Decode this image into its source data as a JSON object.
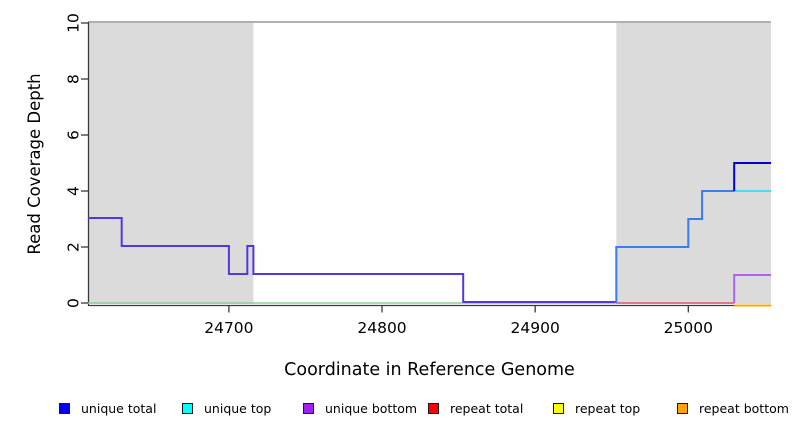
{
  "chart_data": {
    "type": "line",
    "subtype": "step",
    "title": "",
    "xlabel": "Coordinate in Reference Genome",
    "ylabel": "Read Coverage Depth",
    "xlim": [
      24608,
      25054
    ],
    "ylim": [
      0,
      10
    ],
    "x_ticks": [
      24700,
      24800,
      24900,
      25000
    ],
    "y_ticks": [
      0,
      2,
      4,
      6,
      8,
      10
    ],
    "grid": false,
    "legend_position": "bottom",
    "shaded_regions": [
      {
        "x0": 24608,
        "x1": 24716,
        "color": "#dbdbdb"
      },
      {
        "x0": 24953,
        "x1": 25054,
        "color": "#dbdbdb"
      }
    ],
    "series": [
      {
        "name": "unique total",
        "color": "#0000EE",
        "steps": [
          [
            24608,
            3
          ],
          [
            24630,
            2
          ],
          [
            24700,
            1
          ],
          [
            24712,
            2
          ],
          [
            24716,
            1
          ],
          [
            24853,
            0
          ],
          [
            24953,
            2
          ],
          [
            25000,
            3
          ],
          [
            25009,
            4
          ],
          [
            25030,
            5
          ]
        ],
        "end_x": 25054
      },
      {
        "name": "unique top",
        "color": "#00FFFF",
        "steps": [
          [
            24608,
            0
          ],
          [
            24953,
            2
          ],
          [
            25000,
            3
          ],
          [
            25009,
            4
          ]
        ],
        "end_x": 25054
      },
      {
        "name": "unique bottom",
        "color": "#A020F0",
        "steps": [
          [
            24608,
            3
          ],
          [
            24630,
            2
          ],
          [
            24700,
            1
          ],
          [
            24712,
            2
          ],
          [
            24716,
            1
          ],
          [
            24853,
            0
          ],
          [
            25030,
            1
          ]
        ],
        "end_x": 25054
      },
      {
        "name": "repeat total",
        "color": "#FF0000",
        "steps": [
          [
            24608,
            0
          ]
        ],
        "end_x": 25054
      },
      {
        "name": "repeat top",
        "color": "#FFFF00",
        "steps": [
          [
            24608,
            0
          ]
        ],
        "end_x": 25054
      },
      {
        "name": "repeat bottom",
        "color": "#FFA500",
        "steps": [
          [
            24608,
            0
          ]
        ],
        "end_x": 25054
      }
    ],
    "render_segments": [
      {
        "id": "baseline-green",
        "color": "#8fce8f",
        "width": 1.6,
        "dy": 0,
        "points": [
          [
            24608,
            0
          ],
          [
            24953,
            0
          ]
        ]
      },
      {
        "id": "baseline-crimson",
        "color": "#e25573",
        "width": 1.6,
        "dy": 0,
        "points": [
          [
            24953,
            0
          ],
          [
            25030,
            0
          ]
        ]
      },
      {
        "id": "repeat-bottom-orange",
        "color": "#ffa500",
        "width": 2,
        "dy": 2.5,
        "points": [
          [
            25030,
            0
          ],
          [
            25054,
            0
          ]
        ]
      },
      {
        "id": "unique-top-cyan",
        "color": "#45e0e8",
        "width": 2,
        "dy": 0,
        "points": [
          [
            25030,
            4
          ],
          [
            25054,
            4
          ]
        ]
      },
      {
        "id": "unique-bottom-purple",
        "color": "#ae63ed",
        "width": 2,
        "dy": 0,
        "points": [
          [
            25030,
            0
          ],
          [
            25030,
            1
          ],
          [
            25054,
            1
          ]
        ]
      },
      {
        "id": "unique-total-left",
        "color": "#5634e0",
        "width": 2,
        "dy": -1,
        "points": [
          [
            24608,
            3
          ],
          [
            24630,
            3
          ],
          [
            24630,
            2
          ],
          [
            24700,
            2
          ],
          [
            24700,
            1
          ],
          [
            24712,
            1
          ],
          [
            24712,
            2
          ],
          [
            24716,
            2
          ],
          [
            24716,
            1
          ],
          [
            24853,
            1
          ],
          [
            24853,
            0
          ],
          [
            24953,
            0
          ]
        ]
      },
      {
        "id": "unique-total-right",
        "color": "#3c7be8",
        "width": 2,
        "dy": 0,
        "points": [
          [
            24953,
            0
          ],
          [
            24953,
            2
          ],
          [
            25000,
            2
          ],
          [
            25000,
            3
          ],
          [
            25009,
            3
          ],
          [
            25009,
            4
          ],
          [
            25030,
            4
          ]
        ]
      },
      {
        "id": "unique-total-end",
        "color": "#0202cf",
        "width": 2,
        "dy": 0,
        "points": [
          [
            25030,
            4
          ],
          [
            25030,
            5
          ],
          [
            25054,
            5
          ]
        ]
      }
    ]
  },
  "axis": {
    "x_tick_labels": [
      "24700",
      "24800",
      "24900",
      "25000"
    ],
    "y_tick_labels": [
      "0",
      "2",
      "4",
      "6",
      "8",
      "10"
    ]
  },
  "labels": {
    "xlabel": "Coordinate in Reference Genome",
    "ylabel": "Read Coverage Depth"
  },
  "legend": {
    "items": [
      {
        "label": "unique total",
        "color": "#0000EE"
      },
      {
        "label": "unique top",
        "color": "#00FFFF"
      },
      {
        "label": "unique bottom",
        "color": "#A020F0"
      },
      {
        "label": "repeat total",
        "color": "#FF0000"
      },
      {
        "label": "repeat top",
        "color": "#FFFF00"
      },
      {
        "label": "repeat bottom",
        "color": "#FFA500"
      }
    ]
  },
  "colors": {
    "background": "#ffffff",
    "shaded_region": "#dbdbdb",
    "top_spine": "#969696",
    "axis_spine": "#3a3a3a"
  }
}
